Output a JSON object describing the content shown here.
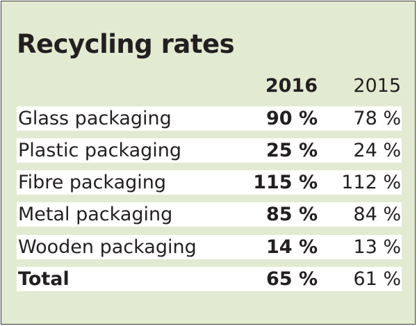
{
  "chart_data": {
    "type": "table",
    "title": "Recycling rates",
    "columns": [
      "2016",
      "2015"
    ],
    "rows": [
      {
        "label": "Glass packaging",
        "v2016": "90 %",
        "v2015": "78 %"
      },
      {
        "label": "Plastic packaging",
        "v2016": "25 %",
        "v2015": "24 %"
      },
      {
        "label": "Fibre packaging",
        "v2016": "115 %",
        "v2015": "112 %"
      },
      {
        "label": "Metal packaging",
        "v2016": "85 %",
        "v2015": "84 %"
      },
      {
        "label": "Wooden packaging",
        "v2016": "14 %",
        "v2015": "13 %"
      },
      {
        "label": "Total",
        "v2016": "65 %",
        "v2015": "61 %"
      }
    ],
    "colors": {
      "background": "#e3ead2",
      "stripe": "#ffffff",
      "text": "#231f20"
    }
  }
}
